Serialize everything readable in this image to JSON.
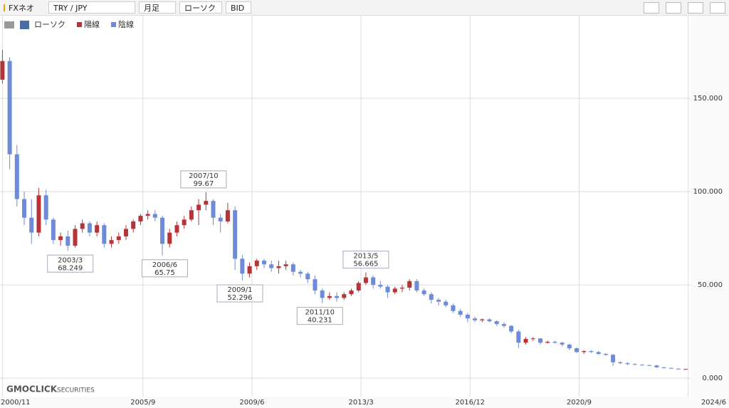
{
  "toolbar": {
    "brand": "FXネオ",
    "pair": "TRY / JPY",
    "period": "月足",
    "style": "ローソク",
    "price": "BID"
  },
  "logo": {
    "main": "GMOCLICK",
    "sub": "SECURITIES"
  },
  "chart_data": {
    "type": "candlestick",
    "legend_title": "ローソク",
    "legend": [
      {
        "name": "陽線",
        "color": "#b5343a"
      },
      {
        "name": "陰線",
        "color": "#6d8bd6"
      }
    ],
    "xlim": [
      "2000/10",
      "2024/7"
    ],
    "xticks": [
      "2000/11",
      "2005/9",
      "2009/6",
      "2013/3",
      "2016/12",
      "2020/9",
      "2024/6"
    ],
    "ylim": [
      -9.9,
      194.3
    ],
    "yticks": [
      {
        "value": 0,
        "label": "0.000"
      },
      {
        "value": 50,
        "label": "50.000"
      },
      {
        "value": 100,
        "label": "100.000"
      },
      {
        "value": 150,
        "label": "150.000"
      }
    ],
    "grid": true,
    "candles": [
      {
        "x": "2000/11",
        "open": 160,
        "high": 176,
        "low": 158,
        "close": 170
      },
      {
        "x": "2001/2",
        "open": 170,
        "high": 172,
        "low": 112,
        "close": 120
      },
      {
        "x": "2001/5",
        "open": 120,
        "high": 125,
        "low": 92,
        "close": 96
      },
      {
        "x": "2001/8",
        "open": 96,
        "high": 100,
        "low": 82,
        "close": 86
      },
      {
        "x": "2001/11",
        "open": 86,
        "high": 96,
        "low": 72,
        "close": 78
      },
      {
        "x": "2002/2",
        "open": 78,
        "high": 102,
        "low": 76,
        "close": 98
      },
      {
        "x": "2002/5",
        "open": 98,
        "high": 101,
        "low": 82,
        "close": 85
      },
      {
        "x": "2002/8",
        "open": 85,
        "high": 86,
        "low": 72,
        "close": 74
      },
      {
        "x": "2002/11",
        "open": 74,
        "high": 78,
        "low": 71,
        "close": 76
      },
      {
        "x": "2003/2",
        "open": 76,
        "high": 79,
        "low": 68.249,
        "close": 71
      },
      {
        "x": "2003/5",
        "open": 71,
        "high": 82,
        "low": 70,
        "close": 80
      },
      {
        "x": "2003/8",
        "open": 80,
        "high": 85,
        "low": 78,
        "close": 83
      },
      {
        "x": "2003/11",
        "open": 83,
        "high": 84,
        "low": 76,
        "close": 78
      },
      {
        "x": "2004/2",
        "open": 78,
        "high": 84,
        "low": 76,
        "close": 82
      },
      {
        "x": "2004/5",
        "open": 82,
        "high": 83,
        "low": 70,
        "close": 72
      },
      {
        "x": "2004/8",
        "open": 72,
        "high": 76,
        "low": 70,
        "close": 74
      },
      {
        "x": "2004/11",
        "open": 74,
        "high": 78,
        "low": 72,
        "close": 76
      },
      {
        "x": "2005/2",
        "open": 76,
        "high": 82,
        "low": 74,
        "close": 80
      },
      {
        "x": "2005/5",
        "open": 80,
        "high": 85,
        "low": 78,
        "close": 84
      },
      {
        "x": "2005/8",
        "open": 84,
        "high": 88,
        "low": 82,
        "close": 87
      },
      {
        "x": "2005/11",
        "open": 87,
        "high": 90,
        "low": 85,
        "close": 88
      },
      {
        "x": "2006/2",
        "open": 88,
        "high": 90,
        "low": 84,
        "close": 86
      },
      {
        "x": "2006/5",
        "open": 86,
        "high": 87,
        "low": 65.75,
        "close": 72
      },
      {
        "x": "2006/8",
        "open": 72,
        "high": 80,
        "low": 70,
        "close": 78
      },
      {
        "x": "2006/11",
        "open": 78,
        "high": 84,
        "low": 76,
        "close": 82
      },
      {
        "x": "2007/2",
        "open": 82,
        "high": 87,
        "low": 80,
        "close": 85
      },
      {
        "x": "2007/5",
        "open": 85,
        "high": 92,
        "low": 84,
        "close": 90
      },
      {
        "x": "2007/8",
        "open": 90,
        "high": 96,
        "low": 82,
        "close": 93
      },
      {
        "x": "2007/11",
        "open": 93,
        "high": 99.67,
        "low": 90,
        "close": 95
      },
      {
        "x": "2008/2",
        "open": 95,
        "high": 96,
        "low": 82,
        "close": 86
      },
      {
        "x": "2008/5",
        "open": 86,
        "high": 88,
        "low": 78,
        "close": 84
      },
      {
        "x": "2008/8",
        "open": 84,
        "high": 94,
        "low": 83,
        "close": 90
      },
      {
        "x": "2008/11",
        "open": 90,
        "high": 92,
        "low": 58,
        "close": 64
      },
      {
        "x": "2009/2",
        "open": 64,
        "high": 66,
        "low": 52.296,
        "close": 56
      },
      {
        "x": "2009/5",
        "open": 56,
        "high": 62,
        "low": 54,
        "close": 60
      },
      {
        "x": "2009/8",
        "open": 60,
        "high": 64,
        "low": 58,
        "close": 63
      },
      {
        "x": "2009/11",
        "open": 63,
        "high": 64,
        "low": 59,
        "close": 61
      },
      {
        "x": "2010/2",
        "open": 61,
        "high": 63,
        "low": 57,
        "close": 59
      },
      {
        "x": "2010/5",
        "open": 59,
        "high": 63,
        "low": 56,
        "close": 60
      },
      {
        "x": "2010/8",
        "open": 60,
        "high": 63,
        "low": 58,
        "close": 61
      },
      {
        "x": "2010/11",
        "open": 61,
        "high": 62,
        "low": 55,
        "close": 57
      },
      {
        "x": "2011/2",
        "open": 57,
        "high": 58,
        "low": 54,
        "close": 56
      },
      {
        "x": "2011/5",
        "open": 56,
        "high": 57,
        "low": 51,
        "close": 53
      },
      {
        "x": "2011/8",
        "open": 53,
        "high": 55,
        "low": 45,
        "close": 47
      },
      {
        "x": "2011/11",
        "open": 47,
        "high": 48,
        "low": 40.231,
        "close": 43
      },
      {
        "x": "2012/2",
        "open": 43,
        "high": 46,
        "low": 42,
        "close": 44
      },
      {
        "x": "2012/5",
        "open": 44,
        "high": 46,
        "low": 41,
        "close": 43
      },
      {
        "x": "2012/8",
        "open": 43,
        "high": 46,
        "low": 42,
        "close": 45
      },
      {
        "x": "2012/11",
        "open": 45,
        "high": 48,
        "low": 44,
        "close": 47
      },
      {
        "x": "2013/2",
        "open": 47,
        "high": 52,
        "low": 46,
        "close": 51
      },
      {
        "x": "2013/5",
        "open": 51,
        "high": 56.665,
        "low": 50,
        "close": 54
      },
      {
        "x": "2013/8",
        "open": 54,
        "high": 55,
        "low": 48,
        "close": 50
      },
      {
        "x": "2013/11",
        "open": 50,
        "high": 52,
        "low": 48,
        "close": 49
      },
      {
        "x": "2014/2",
        "open": 49,
        "high": 50,
        "low": 43,
        "close": 46
      },
      {
        "x": "2014/5",
        "open": 46,
        "high": 49,
        "low": 45,
        "close": 48
      },
      {
        "x": "2014/8",
        "open": 48,
        "high": 50,
        "low": 46,
        "close": 48.5
      },
      {
        "x": "2014/11",
        "open": 48.5,
        "high": 53,
        "low": 47,
        "close": 52
      },
      {
        "x": "2015/2",
        "open": 52,
        "high": 53,
        "low": 46,
        "close": 47
      },
      {
        "x": "2015/5",
        "open": 47,
        "high": 48,
        "low": 44,
        "close": 45
      },
      {
        "x": "2015/8",
        "open": 45,
        "high": 46,
        "low": 40,
        "close": 42
      },
      {
        "x": "2015/11",
        "open": 42,
        "high": 43,
        "low": 39,
        "close": 41
      },
      {
        "x": "2016/2",
        "open": 41,
        "high": 42,
        "low": 38,
        "close": 39
      },
      {
        "x": "2016/5",
        "open": 39,
        "high": 40,
        "low": 35,
        "close": 36
      },
      {
        "x": "2016/8",
        "open": 36,
        "high": 37,
        "low": 33,
        "close": 34
      },
      {
        "x": "2016/11",
        "open": 34,
        "high": 35,
        "low": 30,
        "close": 32
      },
      {
        "x": "2017/2",
        "open": 32,
        "high": 33,
        "low": 30,
        "close": 31
      },
      {
        "x": "2017/5",
        "open": 31,
        "high": 32,
        "low": 30,
        "close": 31.5
      },
      {
        "x": "2017/8",
        "open": 31.5,
        "high": 32,
        "low": 30,
        "close": 30.5
      },
      {
        "x": "2017/11",
        "open": 30.5,
        "high": 31,
        "low": 28,
        "close": 29
      },
      {
        "x": "2018/2",
        "open": 29,
        "high": 30,
        "low": 27,
        "close": 28
      },
      {
        "x": "2018/5",
        "open": 28,
        "high": 28.5,
        "low": 24,
        "close": 25
      },
      {
        "x": "2018/8",
        "open": 25,
        "high": 26,
        "low": 16,
        "close": 19
      },
      {
        "x": "2018/11",
        "open": 19,
        "high": 22,
        "low": 18,
        "close": 21
      },
      {
        "x": "2019/2",
        "open": 21,
        "high": 22,
        "low": 20,
        "close": 21.3
      },
      {
        "x": "2019/5",
        "open": 21.3,
        "high": 21.5,
        "low": 18,
        "close": 19
      },
      {
        "x": "2019/8",
        "open": 19,
        "high": 20,
        "low": 18.5,
        "close": 19.5
      },
      {
        "x": "2019/11",
        "open": 19.5,
        "high": 20,
        "low": 18.5,
        "close": 19
      },
      {
        "x": "2020/2",
        "open": 19,
        "high": 19.5,
        "low": 17,
        "close": 18
      },
      {
        "x": "2020/5",
        "open": 18,
        "high": 18.5,
        "low": 15,
        "close": 16
      },
      {
        "x": "2020/8",
        "open": 16,
        "high": 16.5,
        "low": 13.5,
        "close": 14
      },
      {
        "x": "2020/11",
        "open": 14,
        "high": 15,
        "low": 13,
        "close": 14.5
      },
      {
        "x": "2021/2",
        "open": 14.5,
        "high": 15,
        "low": 13.5,
        "close": 14
      },
      {
        "x": "2021/5",
        "open": 14,
        "high": 14.5,
        "low": 12.5,
        "close": 13
      },
      {
        "x": "2021/8",
        "open": 13,
        "high": 13.5,
        "low": 12,
        "close": 12.5
      },
      {
        "x": "2021/11",
        "open": 12.5,
        "high": 13,
        "low": 6.5,
        "close": 8.5
      },
      {
        "x": "2022/2",
        "open": 8.5,
        "high": 9,
        "low": 7.5,
        "close": 8
      },
      {
        "x": "2022/5",
        "open": 8,
        "high": 8.5,
        "low": 7,
        "close": 7.5
      },
      {
        "x": "2022/8",
        "open": 7.5,
        "high": 8,
        "low": 7,
        "close": 7.2
      },
      {
        "x": "2022/11",
        "open": 7.2,
        "high": 7.5,
        "low": 6.8,
        "close": 7
      },
      {
        "x": "2023/2",
        "open": 7,
        "high": 7.2,
        "low": 6.5,
        "close": 6.8
      },
      {
        "x": "2023/5",
        "open": 6.8,
        "high": 7,
        "low": 5.5,
        "close": 5.8
      },
      {
        "x": "2023/8",
        "open": 5.8,
        "high": 6,
        "low": 5.2,
        "close": 5.5
      },
      {
        "x": "2023/11",
        "open": 5.5,
        "high": 5.6,
        "low": 5,
        "close": 5.1
      },
      {
        "x": "2024/2",
        "open": 5.1,
        "high": 5.2,
        "low": 4.6,
        "close": 4.8
      },
      {
        "x": "2024/5",
        "open": 4.8,
        "high": 5,
        "low": 4.6,
        "close": 4.9
      }
    ],
    "annotations": [
      {
        "date": "2003/3",
        "value": 68.249,
        "position": "below"
      },
      {
        "date": "2006/6",
        "value": 65.75,
        "position": "below"
      },
      {
        "date": "2007/10",
        "value": 99.67,
        "position": "above"
      },
      {
        "date": "2009/1",
        "value": 52.296,
        "position": "below"
      },
      {
        "date": "2011/10",
        "value": 40.231,
        "position": "below"
      },
      {
        "date": "2013/5",
        "value": 56.665,
        "position": "above"
      }
    ]
  }
}
